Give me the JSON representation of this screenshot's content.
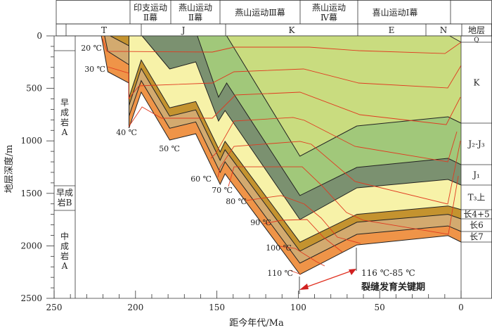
{
  "header": {
    "events": [
      "印支运动",
      "Ⅱ幕",
      "燕山运动",
      "Ⅱ幕",
      "燕山运动Ⅲ幕",
      "燕山运动",
      "Ⅳ幕",
      "喜山运动Ⅰ幕"
    ],
    "periods": [
      "T",
      "J",
      "K",
      "E",
      "N"
    ],
    "strat_header": "地层"
  },
  "lithology_column": [
    "早\n成\n岩\nA",
    "早成\n岩B",
    "中\n成\n岩\nA"
  ],
  "strat_column": [
    "Q",
    "K",
    "J₂-J₃",
    "J₁",
    "T₃上",
    "长4+5",
    "长6",
    "长7"
  ],
  "annotation": {
    "range": "116 ℃-85 ℃",
    "label": "裂缝发育关键期",
    "color": "#e03020"
  },
  "chart_data": {
    "type": "area",
    "title": "",
    "xlabel": "距今年代/Ma",
    "ylabel": "地层深度/m",
    "xlim": [
      250,
      0
    ],
    "ylim": [
      0,
      2500
    ],
    "x_reversed": true,
    "y_reversed": true,
    "xticks": [
      "250",
      "200",
      "150",
      "100",
      "50",
      "0"
    ],
    "yticks": [
      "0",
      "500",
      "1000",
      "1500",
      "2000",
      "2500"
    ],
    "boundaries": {
      "B0": [
        [
          221,
          0
        ],
        [
          217,
          342
        ],
        [
          204,
          449
        ],
        [
          204,
          878
        ],
        [
          196.5,
          536
        ],
        [
          179,
          992
        ],
        [
          163,
          932
        ],
        [
          148,
          1414
        ],
        [
          145,
          1314
        ],
        [
          99,
          2272
        ],
        [
          64,
          1991
        ],
        [
          8,
          1903
        ],
        [
          0,
          1964
        ]
      ],
      "B1": [
        [
          219,
          0
        ],
        [
          217,
          147
        ],
        [
          204,
          275
        ],
        [
          204,
          764
        ],
        [
          196.5,
          426
        ],
        [
          179,
          880
        ],
        [
          163,
          820
        ],
        [
          148,
          1300
        ],
        [
          145,
          1200
        ],
        [
          99,
          2165
        ],
        [
          64,
          1890
        ],
        [
          8,
          1810
        ],
        [
          0,
          1863
        ]
      ],
      "B2": [
        [
          215.5,
          0
        ],
        [
          204,
          94
        ],
        [
          204,
          664
        ],
        [
          196.5,
          310
        ],
        [
          179,
          765
        ],
        [
          163,
          705
        ],
        [
          148,
          1185
        ],
        [
          145,
          1085
        ],
        [
          99,
          2050
        ],
        [
          64,
          1775
        ],
        [
          8,
          1700
        ],
        [
          0,
          1743
        ]
      ],
      "B3": [
        [
          204,
          0
        ],
        [
          204,
          590
        ],
        [
          196.5,
          230
        ],
        [
          179,
          685
        ],
        [
          163,
          625
        ],
        [
          148,
          1105
        ],
        [
          145,
          1005
        ],
        [
          99,
          1965
        ],
        [
          64,
          1700
        ],
        [
          8,
          1620
        ],
        [
          0,
          1655
        ]
      ],
      "B4": [
        [
          204,
          0
        ],
        [
          196,
          0
        ],
        [
          179,
          315
        ],
        [
          163,
          248
        ],
        [
          149,
          811
        ],
        [
          145,
          711
        ],
        [
          99,
          1749
        ],
        [
          64,
          1448
        ],
        [
          8,
          1367
        ],
        [
          0,
          1421
        ]
      ],
      "B5": [
        [
          162,
          0
        ],
        [
          149,
          583
        ],
        [
          144,
          449
        ],
        [
          99,
          1521
        ],
        [
          64,
          1253
        ],
        [
          8,
          1166
        ],
        [
          0,
          1227
        ]
      ],
      "B6": [
        [
          144,
          0
        ],
        [
          99,
          1146
        ],
        [
          64,
          858
        ],
        [
          8,
          771
        ],
        [
          0,
          831
        ]
      ],
      "B7": [
        [
          7,
          0
        ],
        [
          0,
          60
        ]
      ],
      "TOP": [
        [
          7,
          0
        ],
        [
          0,
          0
        ]
      ]
    },
    "layers": [
      {
        "name": "长7",
        "top": "B1",
        "bottom": "B0",
        "color": "#ef9448"
      },
      {
        "name": "长6",
        "top": "B2",
        "bottom": "B1",
        "color": "#d3aa6f"
      },
      {
        "name": "长4+5",
        "top": "B3",
        "bottom": "B2",
        "color": "#c4932f"
      },
      {
        "name": "T₃上",
        "top": "B4",
        "bottom": "B3",
        "color": "#f7f2a8"
      },
      {
        "name": "J₁",
        "top": "B5",
        "bottom": "B4",
        "color": "#7b9170"
      },
      {
        "name": "J₂-J₃",
        "top": "B6",
        "bottom": "B5",
        "color": "#a1c87a"
      },
      {
        "name": "K",
        "top": "B7",
        "bottom": "B6",
        "color": "#c9dc7f"
      },
      {
        "name": "Q",
        "top": "TOP",
        "bottom": "B7",
        "color": "#dfe9a2"
      }
    ],
    "isotherms": [
      {
        "label": "20 ℃",
        "points": [
          [
            220.2,
            27
          ],
          [
            217.6,
            147
          ],
          [
            152.8,
            154
          ],
          [
            139.5,
            107
          ],
          [
            93.3,
            107
          ],
          [
            63,
            141
          ],
          [
            9.9,
            168
          ],
          [
            0,
            60
          ]
        ]
      },
      {
        "label": "30 ℃",
        "points": [
          [
            217.1,
            295
          ],
          [
            204.2,
            355
          ],
          [
            204.2,
            597
          ],
          [
            197.8,
            476
          ],
          [
            152.8,
            449
          ],
          [
            139.5,
            342
          ],
          [
            96.7,
            315
          ],
          [
            63,
            449
          ],
          [
            8.2,
            496
          ],
          [
            0,
            282
          ]
        ]
      },
      {
        "label": "40 ℃",
        "points": [
          [
            204.2,
            865
          ],
          [
            196,
            677
          ],
          [
            184,
            784
          ],
          [
            152.8,
            784
          ],
          [
            138.6,
            563
          ],
          [
            98.9,
            536
          ],
          [
            62.2,
            751
          ],
          [
            9.1,
            845
          ],
          [
            0.4,
            583
          ]
        ]
      },
      {
        "label": "50 ℃",
        "points": [
          [
            153.7,
            1166
          ],
          [
            150.7,
            1119
          ],
          [
            139.5,
            811
          ],
          [
            103.2,
            777
          ],
          [
            96.3,
            804
          ],
          [
            65.2,
            1052
          ],
          [
            8.2,
            1200
          ],
          [
            2.6,
            912
          ]
        ]
      },
      {
        "label": "60 ℃",
        "points": [
          [
            149.4,
            1347
          ],
          [
            148.1,
            1253
          ],
          [
            139.5,
            1052
          ],
          [
            98.9,
            1005
          ],
          [
            92,
            1032
          ],
          [
            65.2,
            1387
          ],
          [
            8.2,
            1602
          ],
          [
            0.4,
            999
          ]
        ]
      },
      {
        "label": "70 ℃",
        "points": [
          [
            142.9,
            1434
          ],
          [
            139.5,
            1247
          ],
          [
            97.6,
            1247
          ],
          [
            85.9,
            1421
          ],
          [
            70.4,
            1682
          ],
          [
            60,
            1756
          ],
          [
            7.8,
            1890
          ],
          [
            1.7,
            1334
          ]
        ]
      },
      {
        "label": "80 ℃",
        "points": [
          [
            132.1,
            1568
          ],
          [
            110.5,
            1521
          ],
          [
            96.3,
            1602
          ],
          [
            85.9,
            1736
          ],
          [
            76,
            1917
          ],
          [
            61.7,
            1977
          ]
        ]
      },
      {
        "label": "90 ℃",
        "points": [
          [
            121.3,
            1790
          ],
          [
            110.5,
            1756
          ],
          [
            94.6,
            1749
          ],
          [
            84.6,
            1917
          ],
          [
            73,
            2058
          ]
        ]
      },
      {
        "label": "100 ℃",
        "points": [
          [
            111.4,
            2004
          ],
          [
            101.9,
            2024
          ],
          [
            88.9,
            2151
          ],
          [
            83.8,
            2192
          ]
        ]
      },
      {
        "label": "110 ℃",
        "points": [
          [
            105.4,
            2232
          ],
          [
            98.4,
            2272
          ]
        ]
      }
    ],
    "isotherm_color": "#e03a20",
    "critical_period_Ma": [
      100,
      65
    ]
  }
}
